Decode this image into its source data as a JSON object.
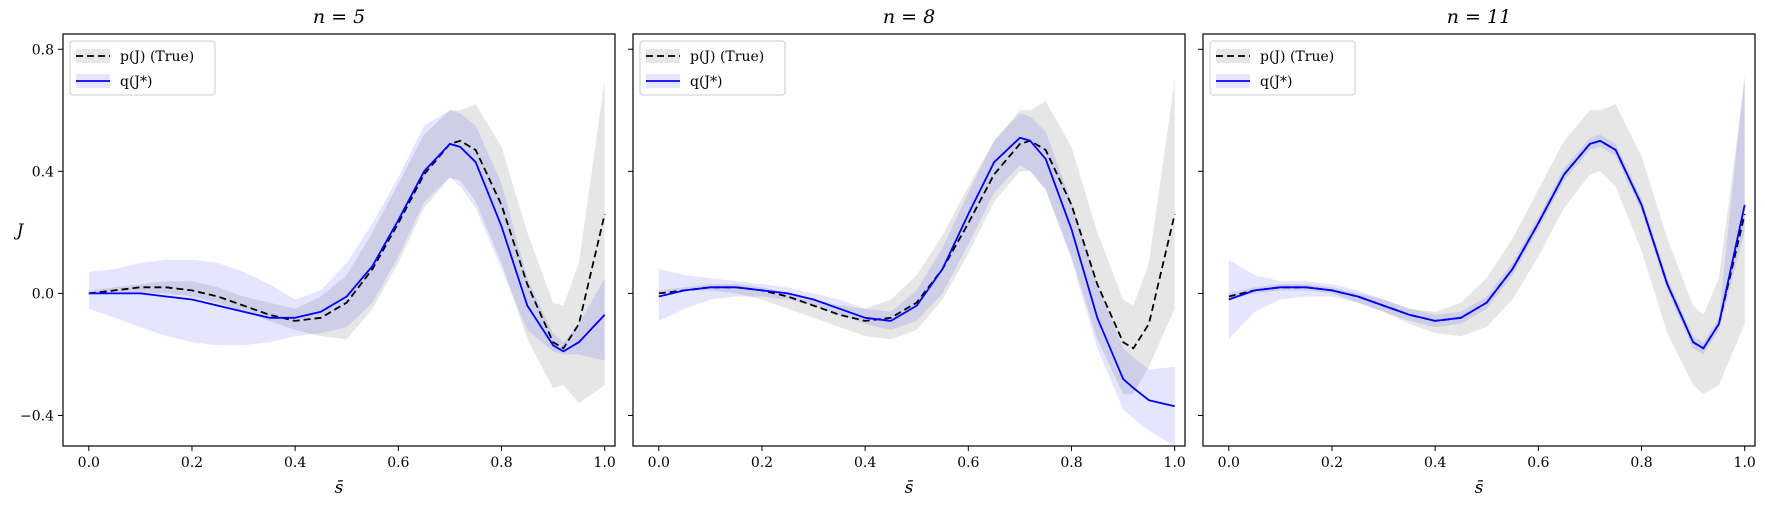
{
  "chart_data": [
    {
      "type": "line",
      "title": "n = 5",
      "xlabel": "s̄",
      "ylabel": "J",
      "xlim": [
        -0.05,
        1.02
      ],
      "ylim": [
        -0.5,
        0.85
      ],
      "xticks": [
        "0.0",
        "0.2",
        "0.4",
        "0.6",
        "0.8",
        "1.0"
      ],
      "yticks": [
        "−0.4",
        "0.0",
        "0.4",
        "0.8"
      ],
      "legend": {
        "position": "top-left",
        "entries": [
          "p(J) (True)",
          "q(J*)"
        ]
      },
      "series": [
        {
          "name": "p(J) (True)",
          "color": "#000000",
          "style": "dashed",
          "x": [
            0.0,
            0.05,
            0.1,
            0.15,
            0.2,
            0.25,
            0.3,
            0.35,
            0.4,
            0.45,
            0.5,
            0.55,
            0.6,
            0.65,
            0.7,
            0.72,
            0.75,
            0.8,
            0.85,
            0.9,
            0.92,
            0.95,
            1.0
          ],
          "y": [
            0.0,
            0.01,
            0.02,
            0.02,
            0.01,
            -0.01,
            -0.04,
            -0.07,
            -0.09,
            -0.08,
            -0.03,
            0.08,
            0.23,
            0.39,
            0.49,
            0.5,
            0.47,
            0.29,
            0.03,
            -0.16,
            -0.18,
            -0.1,
            0.26
          ],
          "band_lower": [
            0.0,
            0.0,
            0.0,
            0.0,
            -0.01,
            -0.03,
            -0.06,
            -0.09,
            -0.12,
            -0.14,
            -0.15,
            -0.05,
            0.1,
            0.28,
            0.38,
            0.37,
            0.3,
            0.1,
            -0.15,
            -0.31,
            -0.3,
            -0.36,
            -0.3
          ],
          "band_upper": [
            0.01,
            0.02,
            0.03,
            0.04,
            0.04,
            0.02,
            -0.01,
            -0.03,
            -0.05,
            -0.01,
            0.06,
            0.2,
            0.36,
            0.52,
            0.6,
            0.6,
            0.62,
            0.48,
            0.2,
            -0.03,
            -0.04,
            0.1,
            0.7
          ]
        },
        {
          "name": "q(J*)",
          "color": "#0000ff",
          "style": "solid",
          "x": [
            0.0,
            0.05,
            0.1,
            0.15,
            0.2,
            0.25,
            0.3,
            0.35,
            0.4,
            0.45,
            0.5,
            0.55,
            0.6,
            0.65,
            0.7,
            0.72,
            0.75,
            0.8,
            0.85,
            0.9,
            0.92,
            0.95,
            1.0
          ],
          "y": [
            0.0,
            0.0,
            0.0,
            -0.01,
            -0.02,
            -0.04,
            -0.06,
            -0.08,
            -0.08,
            -0.06,
            -0.01,
            0.09,
            0.24,
            0.4,
            0.49,
            0.48,
            0.43,
            0.22,
            -0.04,
            -0.17,
            -0.19,
            -0.16,
            -0.07
          ],
          "band_lower": [
            -0.05,
            -0.08,
            -0.11,
            -0.14,
            -0.16,
            -0.17,
            -0.17,
            -0.16,
            -0.14,
            -0.13,
            -0.11,
            -0.03,
            0.12,
            0.3,
            0.38,
            0.35,
            0.28,
            0.08,
            -0.12,
            -0.19,
            -0.2,
            -0.2,
            -0.22
          ],
          "band_upper": [
            0.07,
            0.08,
            0.1,
            0.11,
            0.11,
            0.1,
            0.07,
            0.03,
            -0.02,
            0.01,
            0.1,
            0.23,
            0.38,
            0.55,
            0.6,
            0.59,
            0.55,
            0.36,
            0.05,
            -0.13,
            -0.16,
            -0.1,
            0.05
          ]
        }
      ]
    },
    {
      "type": "line",
      "title": "n = 8",
      "xlabel": "s̄",
      "ylabel": "",
      "xlim": [
        -0.05,
        1.02
      ],
      "ylim": [
        -0.5,
        0.85
      ],
      "xticks": [
        "0.0",
        "0.2",
        "0.4",
        "0.6",
        "0.8",
        "1.0"
      ],
      "yticks": [],
      "legend": {
        "position": "top-left",
        "entries": [
          "p(J) (True)",
          "q(J*)"
        ]
      },
      "series": [
        {
          "name": "p(J) (True)",
          "color": "#000000",
          "style": "dashed",
          "x": [
            0.0,
            0.05,
            0.1,
            0.15,
            0.2,
            0.25,
            0.3,
            0.35,
            0.4,
            0.45,
            0.5,
            0.55,
            0.6,
            0.65,
            0.7,
            0.72,
            0.75,
            0.8,
            0.85,
            0.9,
            0.92,
            0.95,
            1.0
          ],
          "y": [
            0.0,
            0.01,
            0.02,
            0.02,
            0.01,
            -0.01,
            -0.04,
            -0.07,
            -0.09,
            -0.08,
            -0.03,
            0.08,
            0.23,
            0.39,
            0.49,
            0.5,
            0.47,
            0.29,
            0.03,
            -0.16,
            -0.18,
            -0.1,
            0.26
          ],
          "band_lower": [
            0.0,
            0.01,
            0.01,
            0.0,
            -0.02,
            -0.05,
            -0.08,
            -0.11,
            -0.14,
            -0.15,
            -0.12,
            -0.02,
            0.13,
            0.3,
            0.4,
            0.4,
            0.34,
            0.12,
            -0.15,
            -0.33,
            -0.33,
            -0.24,
            -0.05
          ],
          "band_upper": [
            0.01,
            0.02,
            0.03,
            0.03,
            0.02,
            0.0,
            -0.02,
            -0.04,
            -0.05,
            -0.02,
            0.06,
            0.19,
            0.35,
            0.5,
            0.6,
            0.6,
            0.63,
            0.48,
            0.2,
            -0.02,
            -0.04,
            0.1,
            0.7
          ]
        },
        {
          "name": "q(J*)",
          "color": "#0000ff",
          "style": "solid",
          "x": [
            0.0,
            0.05,
            0.1,
            0.15,
            0.2,
            0.25,
            0.3,
            0.35,
            0.4,
            0.45,
            0.5,
            0.55,
            0.6,
            0.65,
            0.7,
            0.72,
            0.75,
            0.8,
            0.85,
            0.9,
            0.92,
            0.95,
            1.0
          ],
          "y": [
            -0.01,
            0.01,
            0.02,
            0.02,
            0.01,
            0.0,
            -0.02,
            -0.05,
            -0.08,
            -0.09,
            -0.04,
            0.08,
            0.26,
            0.43,
            0.51,
            0.5,
            0.44,
            0.21,
            -0.08,
            -0.28,
            -0.31,
            -0.35,
            -0.37
          ],
          "band_lower": [
            -0.09,
            -0.05,
            -0.02,
            -0.01,
            -0.01,
            -0.02,
            -0.04,
            -0.07,
            -0.1,
            -0.12,
            -0.09,
            0.0,
            0.16,
            0.33,
            0.42,
            0.4,
            0.34,
            0.11,
            -0.18,
            -0.38,
            -0.41,
            -0.45,
            -0.5
          ],
          "band_upper": [
            0.08,
            0.06,
            0.05,
            0.04,
            0.03,
            0.02,
            0.0,
            -0.02,
            -0.05,
            -0.06,
            0.01,
            0.15,
            0.33,
            0.5,
            0.59,
            0.58,
            0.53,
            0.3,
            0.03,
            -0.18,
            -0.21,
            -0.25,
            -0.24
          ]
        }
      ]
    },
    {
      "type": "line",
      "title": "n = 11",
      "xlabel": "s̄",
      "ylabel": "",
      "xlim": [
        -0.05,
        1.02
      ],
      "ylim": [
        -0.5,
        0.85
      ],
      "xticks": [
        "0.0",
        "0.2",
        "0.4",
        "0.6",
        "0.8",
        "1.0"
      ],
      "yticks": [],
      "legend": {
        "position": "top-left",
        "entries": [
          "p(J) (True)",
          "q(J*)"
        ]
      },
      "series": [
        {
          "name": "p(J) (True)",
          "color": "#000000",
          "style": "dashed",
          "x": [
            0.0,
            0.05,
            0.1,
            0.15,
            0.2,
            0.25,
            0.3,
            0.35,
            0.4,
            0.45,
            0.5,
            0.55,
            0.6,
            0.65,
            0.7,
            0.72,
            0.75,
            0.8,
            0.85,
            0.9,
            0.92,
            0.95,
            1.0
          ],
          "y": [
            -0.01,
            0.01,
            0.02,
            0.02,
            0.01,
            -0.01,
            -0.04,
            -0.07,
            -0.09,
            -0.08,
            -0.03,
            0.08,
            0.23,
            0.39,
            0.49,
            0.5,
            0.47,
            0.29,
            0.03,
            -0.16,
            -0.18,
            -0.1,
            0.26
          ],
          "band_lower": [
            -0.02,
            0.0,
            0.01,
            0.01,
            0.0,
            -0.03,
            -0.06,
            -0.1,
            -0.13,
            -0.14,
            -0.11,
            -0.02,
            0.12,
            0.28,
            0.39,
            0.4,
            0.35,
            0.14,
            -0.13,
            -0.3,
            -0.33,
            -0.3,
            -0.1
          ],
          "band_upper": [
            0.0,
            0.02,
            0.03,
            0.03,
            0.02,
            0.0,
            -0.02,
            -0.05,
            -0.06,
            -0.03,
            0.05,
            0.18,
            0.34,
            0.5,
            0.6,
            0.6,
            0.62,
            0.45,
            0.18,
            -0.04,
            -0.07,
            0.05,
            0.7
          ]
        },
        {
          "name": "q(J*)",
          "color": "#0000ff",
          "style": "solid",
          "x": [
            0.0,
            0.05,
            0.1,
            0.15,
            0.2,
            0.25,
            0.3,
            0.35,
            0.4,
            0.45,
            0.5,
            0.55,
            0.6,
            0.65,
            0.7,
            0.72,
            0.75,
            0.8,
            0.85,
            0.9,
            0.92,
            0.95,
            1.0
          ],
          "y": [
            -0.02,
            0.01,
            0.02,
            0.02,
            0.01,
            -0.01,
            -0.04,
            -0.07,
            -0.09,
            -0.08,
            -0.03,
            0.08,
            0.23,
            0.39,
            0.49,
            0.5,
            0.47,
            0.29,
            0.03,
            -0.16,
            -0.18,
            -0.1,
            0.29
          ],
          "band_lower": [
            -0.15,
            -0.06,
            -0.02,
            -0.01,
            -0.01,
            -0.03,
            -0.06,
            -0.09,
            -0.11,
            -0.1,
            -0.05,
            0.06,
            0.21,
            0.37,
            0.47,
            0.48,
            0.45,
            0.27,
            0.01,
            -0.18,
            -0.2,
            -0.12,
            0.2
          ],
          "band_upper": [
            0.11,
            0.06,
            0.04,
            0.04,
            0.03,
            0.01,
            -0.02,
            -0.05,
            -0.07,
            -0.06,
            -0.01,
            0.1,
            0.25,
            0.41,
            0.51,
            0.52,
            0.49,
            0.31,
            0.05,
            -0.14,
            -0.16,
            -0.08,
            0.72
          ]
        }
      ]
    }
  ]
}
